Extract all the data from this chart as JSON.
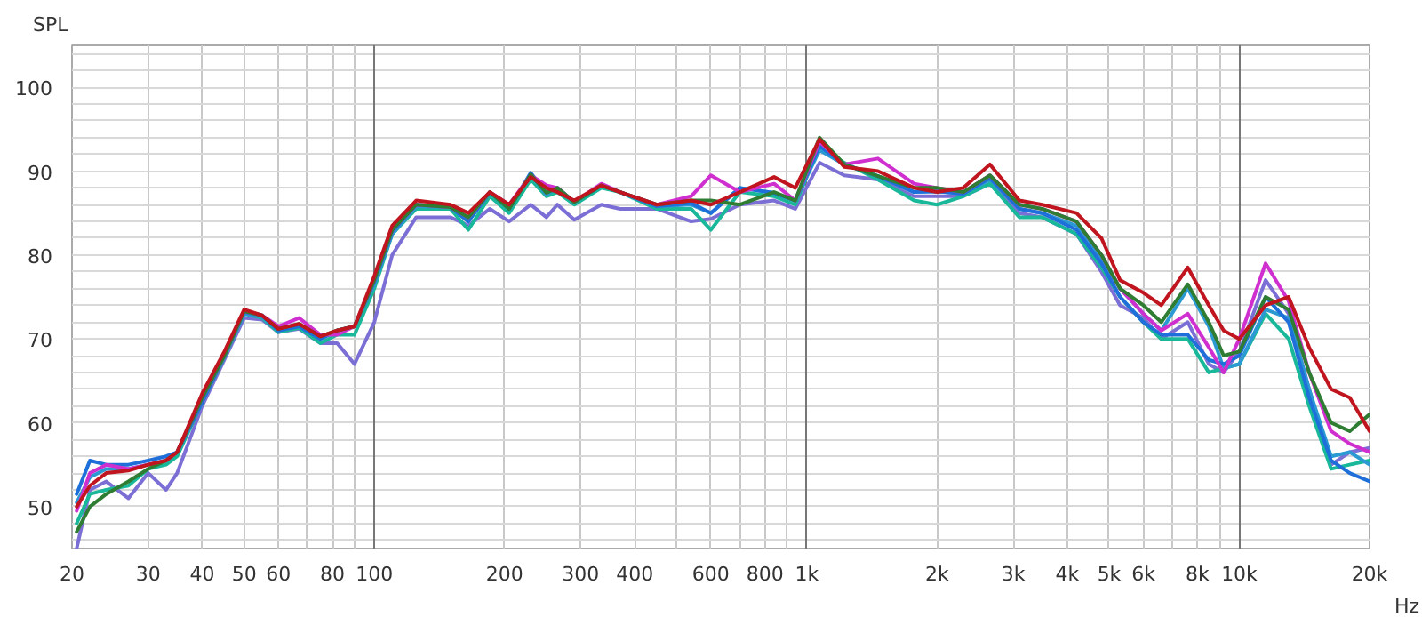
{
  "chart_data": {
    "type": "line",
    "ylabel": "SPL",
    "log": "x",
    "grid": true,
    "line_style": "solid",
    "marker": "none",
    "xlim": [
      20,
      20000
    ],
    "ylim": [
      45,
      105
    ],
    "xticks": [
      20,
      30,
      40,
      50,
      60,
      {
        "value": 70,
        "label": null
      },
      80,
      {
        "value": 90,
        "label": null
      },
      100,
      200,
      300,
      400,
      {
        "value": 500,
        "label": null
      },
      600,
      {
        "value": 700,
        "label": null
      },
      800,
      {
        "value": 900,
        "label": null
      },
      {
        "value": 1000,
        "label": "1k"
      },
      {
        "value": 2000,
        "label": "2k"
      },
      {
        "value": 3000,
        "label": "3k"
      },
      {
        "value": 4000,
        "label": "4k"
      },
      {
        "value": 5000,
        "label": "5k"
      },
      {
        "value": 6000,
        "label": "6k"
      },
      {
        "value": 7000,
        "label": null
      },
      {
        "value": 8000,
        "label": "8k"
      },
      {
        "value": 9000,
        "label": null
      },
      {
        "value": 10000,
        "label": "10k"
      },
      {
        "value": 20000,
        "label": "20k"
      }
    ],
    "xlabel": "Hz",
    "yticks": [
      {
        "value": 46,
        "label": null
      },
      {
        "value": 48,
        "label": null
      },
      50,
      {
        "value": 52,
        "label": null
      },
      {
        "value": 54,
        "label": null
      },
      {
        "value": 56,
        "label": null
      },
      {
        "value": 58,
        "label": null
      },
      60,
      {
        "value": 62,
        "label": null
      },
      {
        "value": 64,
        "label": null
      },
      {
        "value": 66,
        "label": null
      },
      {
        "value": 68,
        "label": null
      },
      70,
      {
        "value": 72,
        "label": null
      },
      {
        "value": 74,
        "label": null
      },
      {
        "value": 76,
        "label": null
      },
      {
        "value": 78,
        "label": null
      },
      80,
      {
        "value": 82,
        "label": null
      },
      {
        "value": 84,
        "label": null
      },
      {
        "value": 86,
        "label": null
      },
      {
        "value": 88,
        "label": null
      },
      90,
      {
        "value": 92,
        "label": null
      },
      {
        "value": 94,
        "label": null
      },
      {
        "value": 96,
        "label": null
      },
      {
        "value": 98,
        "label": null
      },
      100,
      {
        "value": 102,
        "label": null
      },
      {
        "value": 104,
        "label": null
      }
    ],
    "x": [
      20.5,
      22,
      24,
      27,
      30,
      33,
      35,
      40,
      45,
      50,
      55,
      60,
      67,
      75,
      82,
      90,
      100,
      110,
      125,
      150,
      165,
      185,
      205,
      230,
      250,
      265,
      290,
      335,
      370,
      450,
      540,
      600,
      700,
      840,
      940,
      1070,
      1220,
      1460,
      1770,
      2000,
      2300,
      2650,
      3100,
      3500,
      4200,
      4800,
      5300,
      6000,
      6600,
      7600,
      8500,
      9200,
      10000,
      11500,
      13000,
      14500,
      16300,
      18000,
      20000
    ],
    "series": [
      {
        "color": "#7b6fd6",
        "values": [
          45,
          52,
          53,
          51,
          54,
          52,
          54,
          62,
          67.5,
          72.5,
          72.3,
          70.8,
          71.2,
          69.5,
          69.5,
          67,
          72,
          80,
          84.5,
          84.5,
          83.5,
          85.5,
          84,
          86,
          84.5,
          86,
          84.2,
          86,
          85.5,
          85.5,
          84,
          84.3,
          86,
          86.5,
          85.5,
          91,
          89.5,
          89,
          87,
          87,
          87,
          88.5,
          85,
          84.5,
          82.5,
          78,
          74,
          72.5,
          70,
          72,
          67,
          66,
          68.5,
          77,
          73,
          64,
          55,
          56.5,
          57
        ]
      },
      {
        "color": "#19b89a",
        "values": [
          48,
          51.5,
          52,
          52.5,
          54.5,
          55,
          56,
          62.5,
          67.8,
          73,
          72.5,
          70.8,
          71.3,
          69.5,
          70.5,
          70.5,
          76,
          82.5,
          85.5,
          85.5,
          83,
          87,
          85,
          89,
          87,
          87.5,
          86,
          88,
          87.5,
          85.5,
          85.5,
          83,
          87.5,
          87,
          86,
          93,
          91,
          89,
          86.5,
          86,
          87,
          88.5,
          84.5,
          84.5,
          82.5,
          78.5,
          75,
          72,
          70,
          70,
          66,
          66.5,
          67,
          73,
          70,
          62,
          54.5,
          55,
          55.5
        ]
      },
      {
        "color": "#2b9ad3",
        "values": [
          50.5,
          53.5,
          54.5,
          54.5,
          55,
          55.5,
          56.5,
          62.5,
          68,
          73,
          72.6,
          71,
          71.5,
          70,
          71,
          71.5,
          76.5,
          82.5,
          85.8,
          85.7,
          84,
          87.5,
          85.5,
          89.6,
          87.2,
          88,
          86.3,
          88.3,
          87.5,
          85.8,
          86,
          85,
          88,
          87.4,
          86.5,
          92.5,
          90.8,
          89.4,
          87.5,
          87.6,
          87.3,
          89,
          85.5,
          85,
          83.5,
          79.5,
          76,
          73,
          71,
          76,
          71.5,
          66.5,
          67,
          73.5,
          72.5,
          64,
          56,
          56.5,
          55
        ]
      },
      {
        "color": "#1e6fd9",
        "values": [
          51.5,
          55.5,
          55,
          55,
          55.5,
          56,
          56.5,
          62.5,
          68,
          73.2,
          72.8,
          71,
          71.5,
          70,
          71,
          71.5,
          76.8,
          82.8,
          86,
          85.7,
          84,
          87.5,
          85.5,
          89.8,
          87.4,
          88,
          86.3,
          88.3,
          87.5,
          85.8,
          86.2,
          85,
          88,
          87.4,
          86.5,
          93,
          90.8,
          89.4,
          87.5,
          87.6,
          87.3,
          89.2,
          85.5,
          85,
          83,
          79,
          75,
          72,
          70.5,
          70.5,
          67.5,
          67,
          68,
          75,
          72,
          63,
          55.5,
          54,
          53
        ]
      },
      {
        "color": "#d02fcf",
        "values": [
          49.5,
          54,
          55,
          54.5,
          55,
          55.5,
          56.5,
          63,
          68,
          73.3,
          72.8,
          71.5,
          72.5,
          70.5,
          70.5,
          71.5,
          77,
          83,
          86,
          85.7,
          84.5,
          87.5,
          86,
          89.5,
          88.3,
          88,
          86.3,
          88.5,
          87.5,
          86,
          87,
          89.5,
          87.5,
          88.5,
          86.5,
          93.5,
          90.8,
          91.5,
          88.5,
          88,
          87.5,
          89.5,
          86,
          85.5,
          84,
          80,
          76,
          73,
          71,
          73,
          69,
          66,
          70,
          79,
          74.5,
          66,
          59,
          57.5,
          56.5
        ]
      },
      {
        "color": "#2e7d32",
        "values": [
          47,
          50,
          51.5,
          53,
          54.5,
          55.5,
          56.5,
          63,
          68,
          73.3,
          72.8,
          71.2,
          71.8,
          70.3,
          71,
          71.5,
          77,
          83,
          86,
          85.7,
          84.5,
          87.5,
          85.5,
          89.6,
          87.4,
          88,
          86.3,
          88.3,
          87.5,
          86,
          86.5,
          86.5,
          86,
          87.5,
          86.5,
          94,
          90.8,
          89.4,
          88,
          88,
          87.5,
          89.5,
          86,
          85.5,
          84,
          80,
          76,
          74,
          72,
          76.5,
          72,
          68,
          68.5,
          75,
          73.5,
          66,
          60,
          59,
          61
        ]
      },
      {
        "color": "#c0141e",
        "values": [
          50,
          52.5,
          54,
          54.3,
          55,
          55.5,
          56.5,
          63.5,
          68.5,
          73.5,
          72.8,
          71.2,
          71.8,
          70.3,
          71,
          71.5,
          77.5,
          83.5,
          86.5,
          86,
          85,
          87.5,
          86,
          89.3,
          88,
          87.5,
          86.5,
          88.3,
          87.5,
          86,
          86.5,
          86,
          87.5,
          89.3,
          88,
          93.8,
          90.5,
          90,
          88,
          87.5,
          88,
          90.8,
          86.5,
          86,
          85,
          82,
          77,
          75.5,
          74,
          78.5,
          74,
          71,
          70,
          74,
          75,
          69,
          64,
          63,
          59
        ]
      }
    ]
  }
}
